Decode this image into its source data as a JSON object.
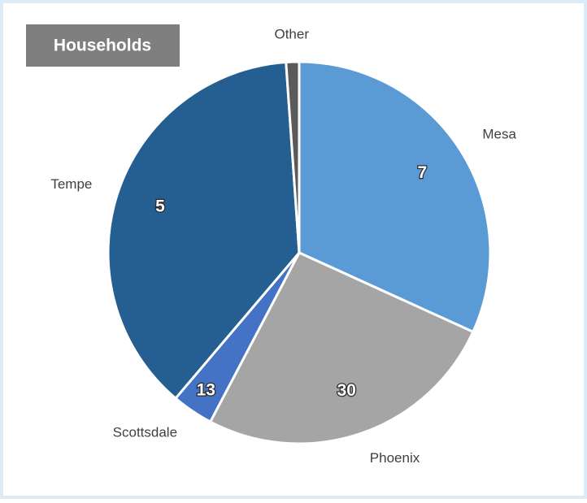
{
  "chart_data": {
    "type": "pie",
    "title": "Households",
    "categories": [
      "Mesa",
      "Phoenix",
      "Scottsdale",
      "Tempe",
      "Other"
    ],
    "values": [
      31.8,
      25.9,
      3.5,
      37.7,
      1.1
    ],
    "point_labels": [
      7,
      30,
      13,
      5,
      null
    ],
    "colors": [
      "#5b9bd5",
      "#a5a5a5",
      "#4472c4",
      "#255e91",
      "#5a5a5a"
    ]
  }
}
